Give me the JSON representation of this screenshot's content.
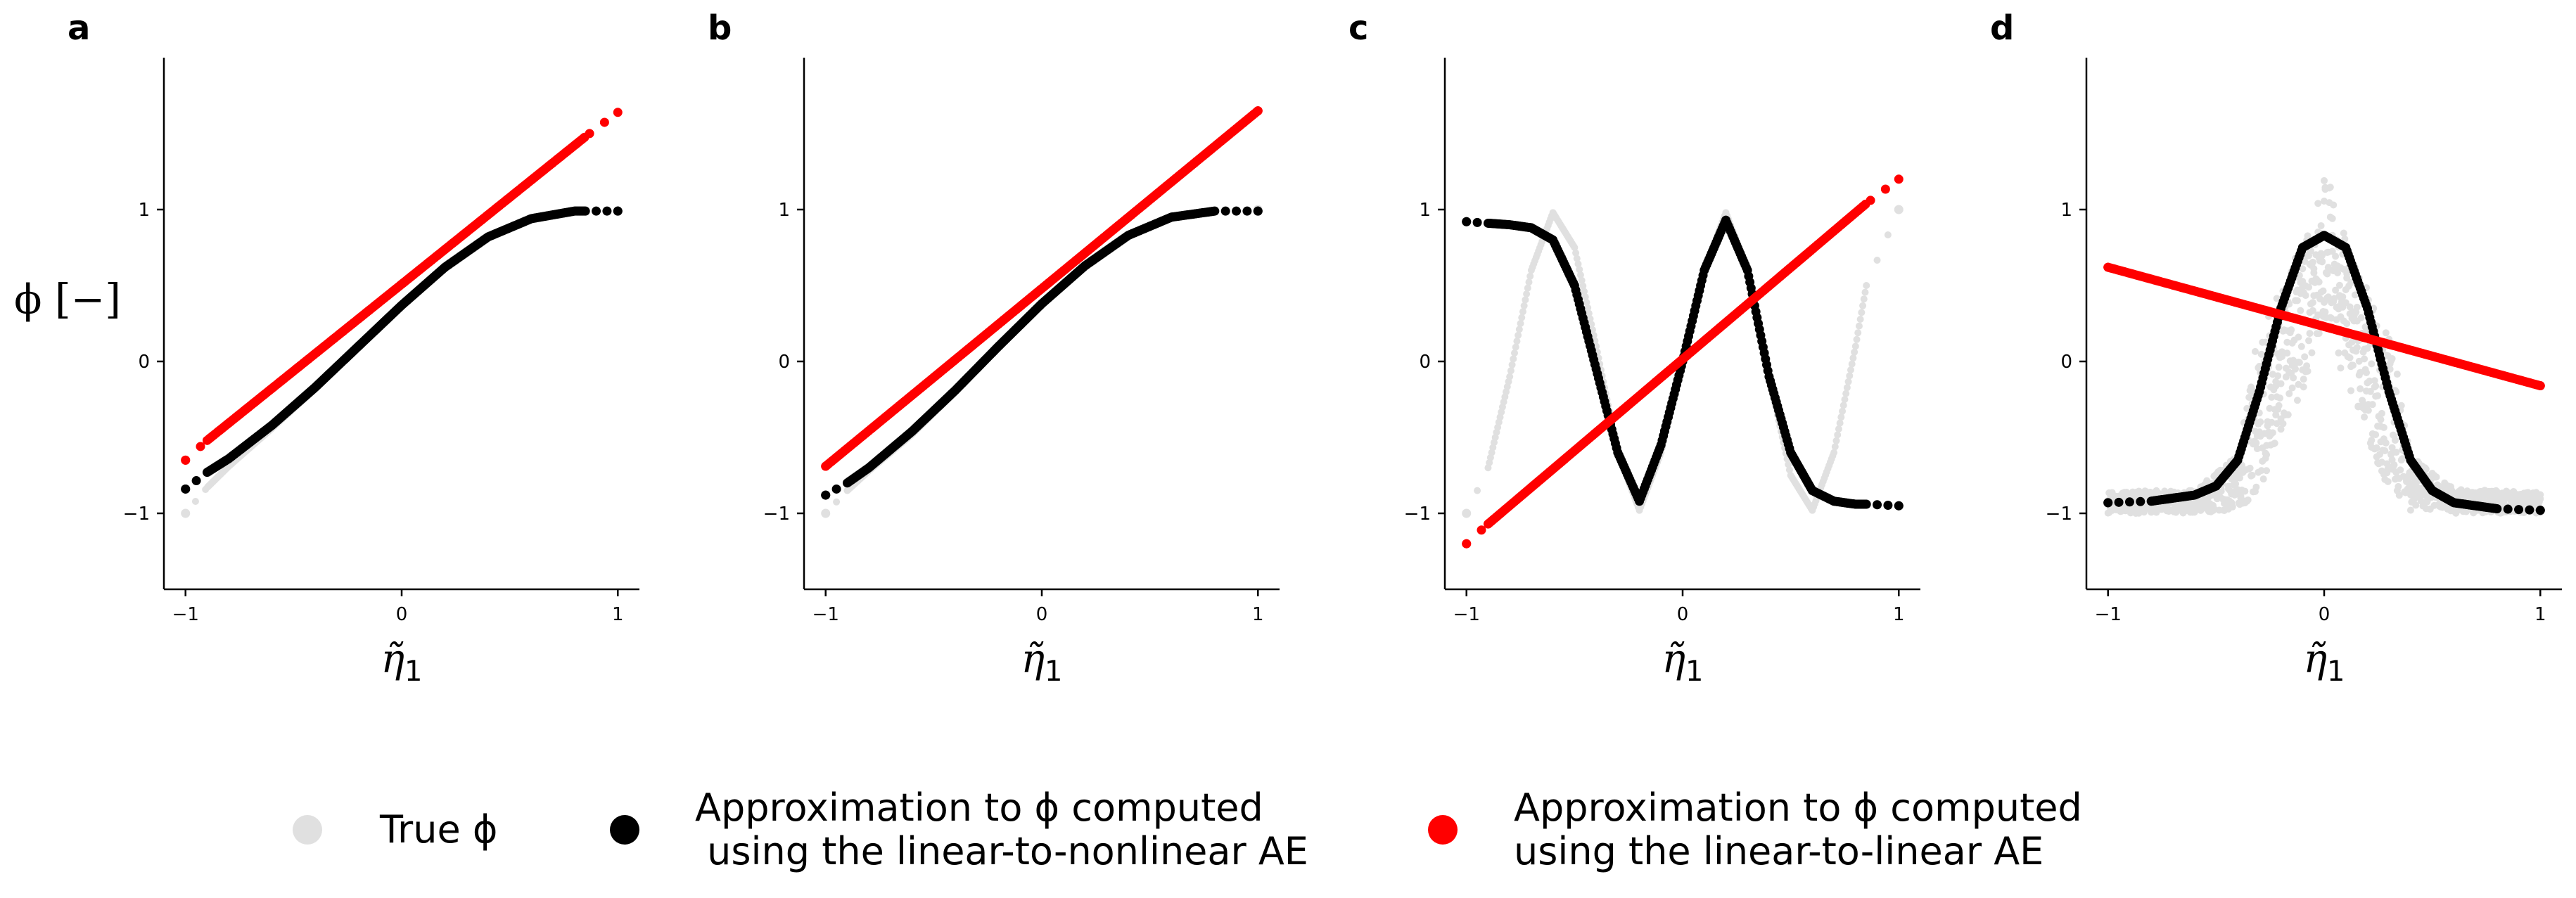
{
  "chart_data": [
    {
      "panel": "a",
      "type": "scatter",
      "xlabel": "η̃1",
      "ylabel": "ϕ [−]",
      "xlim": [
        -1.1,
        1.1
      ],
      "ylim": [
        -1.5,
        2.0
      ],
      "xticks": [
        -1,
        0,
        1
      ],
      "xtick_labels": [
        "−1",
        "0",
        "1"
      ],
      "yticks": [
        -1,
        0,
        1
      ],
      "ytick_labels": [
        "−1",
        "0",
        "1"
      ],
      "series": [
        {
          "role": "true",
          "color": "#e0e0e0",
          "kind": "curve",
          "fn": "sin_a",
          "x": [
            -1,
            -0.9,
            -0.8,
            -0.6,
            -0.4,
            -0.2,
            0,
            0.2,
            0.4,
            0.6,
            0.8,
            0.85
          ],
          "y": [
            -1.0,
            -0.83,
            -0.69,
            -0.44,
            -0.18,
            0.1,
            0.37,
            0.62,
            0.82,
            0.94,
            0.99,
            0.99
          ]
        },
        {
          "role": "nonlinear",
          "color": "#000000",
          "kind": "curve",
          "x": [
            -1,
            -0.9,
            -0.8,
            -0.6,
            -0.4,
            -0.2,
            0,
            0.2,
            0.4,
            0.6,
            0.8,
            0.85,
            1.0
          ],
          "y": [
            -0.84,
            -0.73,
            -0.64,
            -0.42,
            -0.17,
            0.1,
            0.37,
            0.62,
            0.82,
            0.94,
            0.99,
            0.99,
            0.99
          ]
        },
        {
          "role": "linear",
          "color": "#ff0000",
          "kind": "line",
          "x": [
            -1,
            -0.9,
            0.85,
            1.0
          ],
          "y": [
            -0.65,
            -0.52,
            1.48,
            1.64
          ]
        }
      ]
    },
    {
      "panel": "b",
      "type": "scatter",
      "xlabel": "η̃1",
      "xlim": [
        -1.1,
        1.1
      ],
      "ylim": [
        -1.5,
        2.0
      ],
      "xticks": [
        -1,
        0,
        1
      ],
      "xtick_labels": [
        "−1",
        "0",
        "1"
      ],
      "yticks": [
        -1,
        0,
        1
      ],
      "ytick_labels": [
        "−1",
        "0",
        "1"
      ],
      "series": [
        {
          "role": "true",
          "color": "#e0e0e0",
          "kind": "curve",
          "x": [
            -1,
            -0.9,
            -0.8,
            -0.6,
            -0.4,
            -0.2,
            0,
            0.2,
            0.4,
            0.6,
            0.8,
            1.0
          ],
          "y": [
            -1.0,
            -0.85,
            -0.72,
            -0.48,
            -0.2,
            0.1,
            0.38,
            0.63,
            0.83,
            0.95,
            0.99,
            1.0
          ]
        },
        {
          "role": "nonlinear",
          "color": "#000000",
          "kind": "curve",
          "x": [
            -1,
            -0.9,
            -0.8,
            -0.6,
            -0.4,
            -0.2,
            0,
            0.2,
            0.4,
            0.6,
            0.8,
            1.0
          ],
          "y": [
            -0.88,
            -0.8,
            -0.7,
            -0.46,
            -0.19,
            0.1,
            0.38,
            0.63,
            0.83,
            0.95,
            0.99,
            0.99
          ]
        },
        {
          "role": "linear",
          "color": "#ff0000",
          "kind": "line",
          "x": [
            -1,
            1.0
          ],
          "y": [
            -0.69,
            1.65
          ]
        }
      ]
    },
    {
      "panel": "c",
      "type": "scatter",
      "xlabel": "η̃1",
      "xlim": [
        -1.1,
        1.1
      ],
      "ylim": [
        -1.5,
        2.0
      ],
      "xticks": [
        -1,
        0,
        1
      ],
      "xtick_labels": [
        "−1",
        "0",
        "1"
      ],
      "yticks": [
        -1,
        0,
        1
      ],
      "ytick_labels": [
        "−1",
        "0",
        "1"
      ],
      "series": [
        {
          "role": "true",
          "color": "#e0e0e0",
          "kind": "curve",
          "x": [
            -1.0,
            -0.9,
            -0.8,
            -0.7,
            -0.6,
            -0.5,
            -0.4,
            -0.3,
            -0.2,
            -0.1,
            0.0,
            0.1,
            0.2,
            0.3,
            0.4,
            0.5,
            0.6,
            0.7,
            0.8,
            0.85,
            1.0
          ],
          "y": [
            -1.0,
            -0.7,
            -0.1,
            0.6,
            0.98,
            0.75,
            0.1,
            -0.6,
            -0.98,
            -0.6,
            0.0,
            0.6,
            0.98,
            0.6,
            -0.1,
            -0.75,
            -0.98,
            -0.6,
            0.1,
            0.5,
            1.0
          ]
        },
        {
          "role": "nonlinear",
          "color": "#000000",
          "kind": "curve",
          "x": [
            -1.0,
            -0.9,
            -0.8,
            -0.7,
            -0.6,
            -0.5,
            -0.4,
            -0.3,
            -0.2,
            -0.1,
            0.0,
            0.1,
            0.2,
            0.3,
            0.4,
            0.5,
            0.6,
            0.7,
            0.8,
            0.85,
            1.0
          ],
          "y": [
            0.92,
            0.91,
            0.9,
            0.88,
            0.8,
            0.5,
            -0.05,
            -0.6,
            -0.92,
            -0.55,
            0.0,
            0.6,
            0.93,
            0.6,
            -0.1,
            -0.6,
            -0.85,
            -0.92,
            -0.94,
            -0.94,
            -0.95
          ]
        },
        {
          "role": "linear",
          "color": "#ff0000",
          "kind": "line",
          "x": [
            -1,
            -0.9,
            0.85,
            1.0
          ],
          "y": [
            -1.2,
            -1.07,
            1.04,
            1.2
          ]
        }
      ]
    },
    {
      "panel": "d",
      "type": "scatter",
      "xlabel": "η̃1",
      "xlim": [
        -1.1,
        1.1
      ],
      "ylim": [
        -1.5,
        2.0
      ],
      "xticks": [
        -1,
        0,
        1
      ],
      "xtick_labels": [
        "−1",
        "0",
        "1"
      ],
      "yticks": [
        -1,
        0,
        1
      ],
      "ytick_labels": [
        "−1",
        "0",
        "1"
      ],
      "series": [
        {
          "role": "true",
          "color": "#e0e0e0",
          "kind": "band",
          "x": [
            -1.0,
            -0.6,
            -0.4,
            -0.3,
            -0.2,
            -0.1,
            0.0,
            0.1,
            0.2,
            0.3,
            0.4,
            0.6,
            1.0
          ],
          "y_low": [
            -1.0,
            -1.0,
            -0.98,
            -0.85,
            -0.5,
            -0.2,
            0.3,
            -0.2,
            -0.5,
            -0.85,
            -0.98,
            -1.0,
            -1.0
          ],
          "y_high": [
            -0.93,
            -0.92,
            -0.8,
            -0.3,
            0.4,
            0.85,
            1.0,
            0.85,
            0.4,
            -0.3,
            -0.8,
            -0.92,
            -0.93
          ]
        },
        {
          "role": "nonlinear",
          "color": "#000000",
          "kind": "curve",
          "x": [
            -1.0,
            -0.8,
            -0.6,
            -0.5,
            -0.4,
            -0.3,
            -0.2,
            -0.1,
            0.0,
            0.1,
            0.2,
            0.3,
            0.4,
            0.5,
            0.6,
            0.8,
            1.0
          ],
          "y": [
            -0.93,
            -0.92,
            -0.88,
            -0.82,
            -0.65,
            -0.2,
            0.35,
            0.75,
            0.83,
            0.75,
            0.35,
            -0.2,
            -0.65,
            -0.85,
            -0.93,
            -0.97,
            -0.98
          ]
        },
        {
          "role": "linear",
          "color": "#ff0000",
          "kind": "line",
          "x": [
            -1.0,
            1.0
          ],
          "y": [
            0.62,
            -0.16
          ]
        }
      ]
    }
  ],
  "panel_labels": [
    "a",
    "b",
    "c",
    "d"
  ],
  "axis": {
    "xlabel_main": "η̃",
    "xlabel_sub": "1",
    "ylabel": "ϕ [−]"
  },
  "legend": {
    "items": [
      {
        "label_lines": [
          "True ϕ"
        ],
        "color": "#e0e0e0"
      },
      {
        "label_lines": [
          "Approximation to ϕ computed",
          " using the linear-to-nonlinear AE"
        ],
        "color": "#000000"
      },
      {
        "label_lines": [
          "Approximation to ϕ computed",
          "using the linear-to-linear AE"
        ],
        "color": "#ff0000"
      }
    ]
  }
}
